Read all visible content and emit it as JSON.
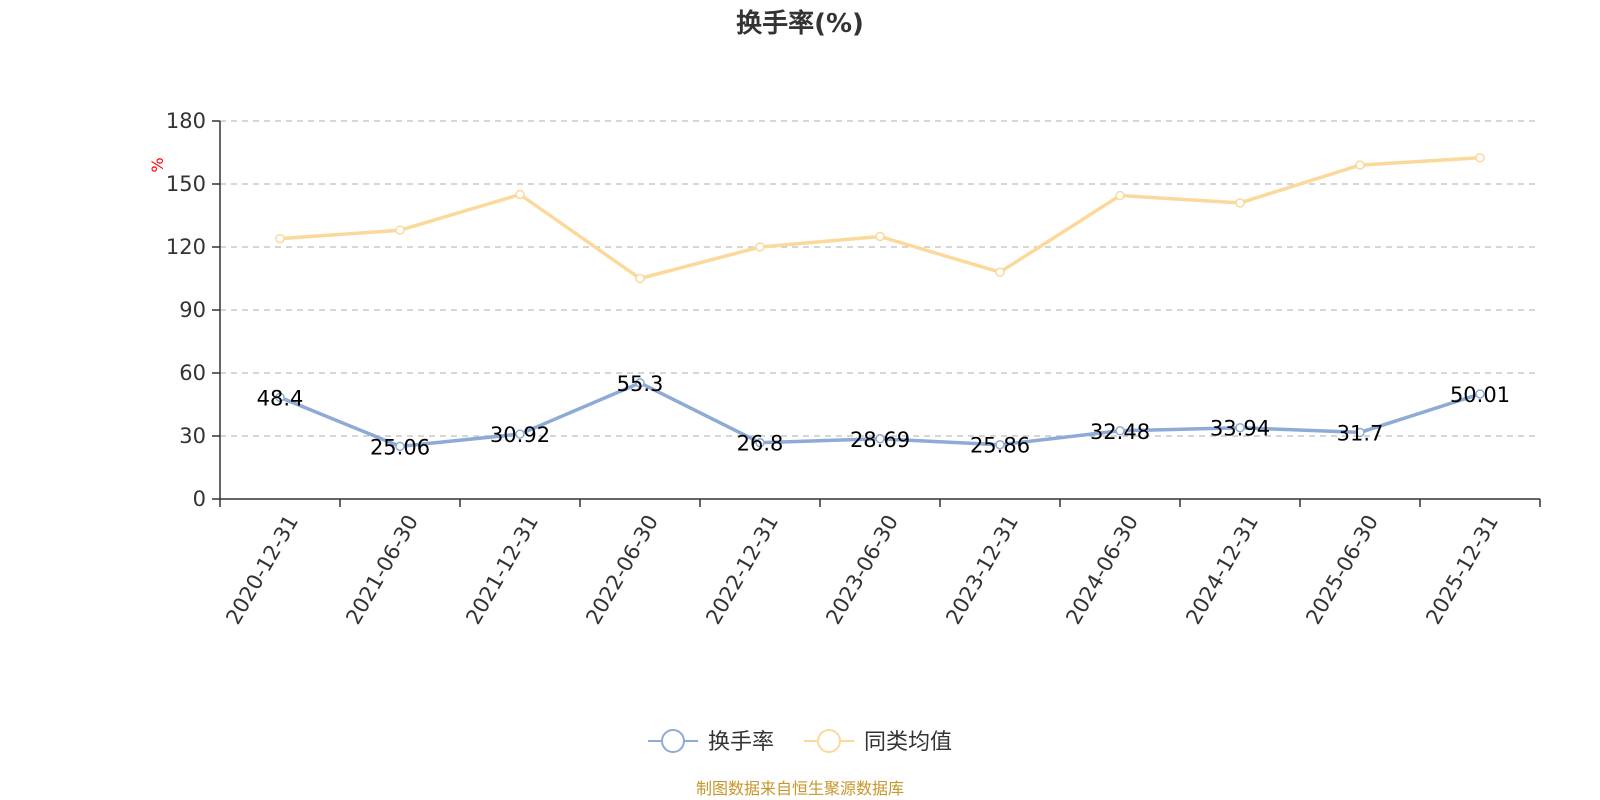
{
  "chart_data": {
    "type": "line",
    "title": "换手率(%)",
    "ylabel": "%",
    "xlabel": "",
    "categories": [
      "2020-12-31",
      "2021-06-30",
      "2021-12-31",
      "2022-06-30",
      "2022-12-31",
      "2023-06-30",
      "2023-12-31",
      "2024-06-30",
      "2024-12-31",
      "2025-06-30",
      "2025-12-31"
    ],
    "ylim": [
      0,
      180
    ],
    "yticks": [
      0,
      30,
      60,
      90,
      120,
      150,
      180
    ],
    "grid": "horizontal dashed",
    "legend_position": "bottom-center",
    "series": [
      {
        "name": "换手率",
        "color": "#8eaad6",
        "show_labels": true,
        "values": [
          48.4,
          25.06,
          30.92,
          55.3,
          26.8,
          28.69,
          25.86,
          32.48,
          33.94,
          31.7,
          50.01
        ]
      },
      {
        "name": "同类均值",
        "color": "#fbd99b",
        "show_labels": false,
        "values": [
          124,
          128,
          145,
          105,
          120,
          125,
          108,
          144.5,
          141,
          159,
          162.5
        ]
      }
    ]
  },
  "source_note": "制图数据来自恒生聚源数据库",
  "source_color": "#c8962a"
}
